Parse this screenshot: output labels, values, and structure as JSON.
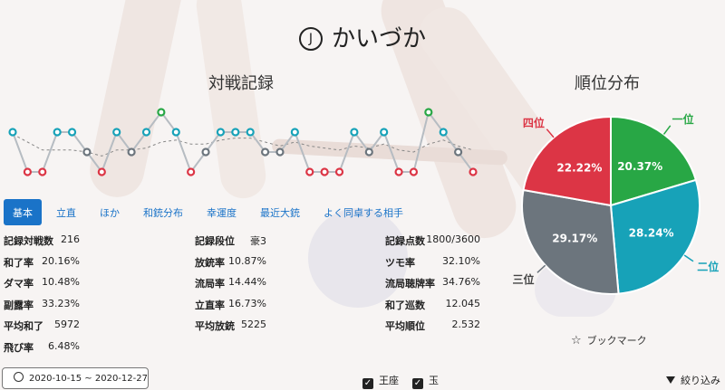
{
  "player": {
    "mark": "J",
    "name": "かいづか"
  },
  "sections": {
    "record_title": "対戦記録",
    "rank_title": "順位分布"
  },
  "tabs": [
    "基本",
    "立直",
    "ほか",
    "和銃分布",
    "幸運度",
    "最近大銃",
    "よく同卓する相手"
  ],
  "stats_col1": [
    {
      "k": "記録対戦数",
      "v": "216"
    },
    {
      "k": "和了率",
      "v": "20.16%"
    },
    {
      "k": "ダマ率",
      "v": "10.48%"
    },
    {
      "k": "副露率",
      "v": "33.23%"
    },
    {
      "k": "平均和了",
      "v": "5972"
    },
    {
      "k": "飛び率",
      "v": "6.48%"
    }
  ],
  "stats_col2": [
    {
      "k": "記録段位",
      "v": "豪3"
    },
    {
      "k": "放銃率",
      "v": "10.87%"
    },
    {
      "k": "流局率",
      "v": "14.44%"
    },
    {
      "k": "立直率",
      "v": "16.73%"
    },
    {
      "k": "平均放銃",
      "v": "5225"
    }
  ],
  "stats_col3": [
    {
      "k": "記録点数",
      "v": "1800/3600"
    },
    {
      "k": "ツモ率",
      "v": "32.10%"
    },
    {
      "k": "流局聴牌率",
      "v": "34.76%"
    },
    {
      "k": "和了巡数",
      "v": "12.045"
    },
    {
      "k": "平均順位",
      "v": "2.532"
    }
  ],
  "bookmark": {
    "icon": "star-outline-icon",
    "label": "ブックマーク"
  },
  "date_range": {
    "icon": "clock-icon",
    "label": "2020-10-15 ~ 2020-12-27"
  },
  "checks": [
    {
      "label": "王座",
      "checked": true
    },
    {
      "label": "玉",
      "checked": true
    }
  ],
  "filter": {
    "icon": "filter-icon",
    "label": "絞り込み"
  },
  "colors": {
    "first": "#28a745",
    "second": "#17a2b8",
    "third": "#6c757d",
    "fourth": "#dc3545",
    "accent": "#1a73c8"
  },
  "chart_data": [
    {
      "type": "line",
      "series": [
        {
          "values": [
            2,
            4,
            4,
            2,
            2,
            3,
            4,
            2,
            3,
            2,
            1,
            2,
            4,
            3,
            2,
            2,
            2,
            3,
            3,
            2,
            4,
            4,
            4,
            2,
            3,
            2,
            4,
            4,
            1,
            2,
            3,
            4
          ]
        }
      ],
      "trend_values": [
        2.1,
        2.5,
        2.9,
        2.9,
        2.9,
        3.0,
        3.2,
        2.9,
        2.9,
        2.8,
        2.5,
        2.4,
        2.6,
        2.6,
        2.4,
        2.3,
        2.3,
        2.5,
        2.7,
        2.5,
        2.7,
        2.8,
        2.9,
        2.7,
        2.8,
        2.6,
        2.9,
        3.0,
        2.6,
        2.4,
        2.7,
        2.9
      ],
      "ylim": [
        1,
        4
      ],
      "grid": false
    },
    {
      "type": "pie",
      "labels": [
        "一位",
        "二位",
        "三位",
        "四位"
      ],
      "values": [
        20.37,
        28.24,
        29.17,
        22.22
      ],
      "value_labels": [
        "20.37%",
        "28.24%",
        "29.17%",
        "22.22%"
      ],
      "colors": [
        "#28a745",
        "#17a2b8",
        "#6c757d",
        "#dc3545"
      ],
      "legend": "outside-labels"
    }
  ]
}
